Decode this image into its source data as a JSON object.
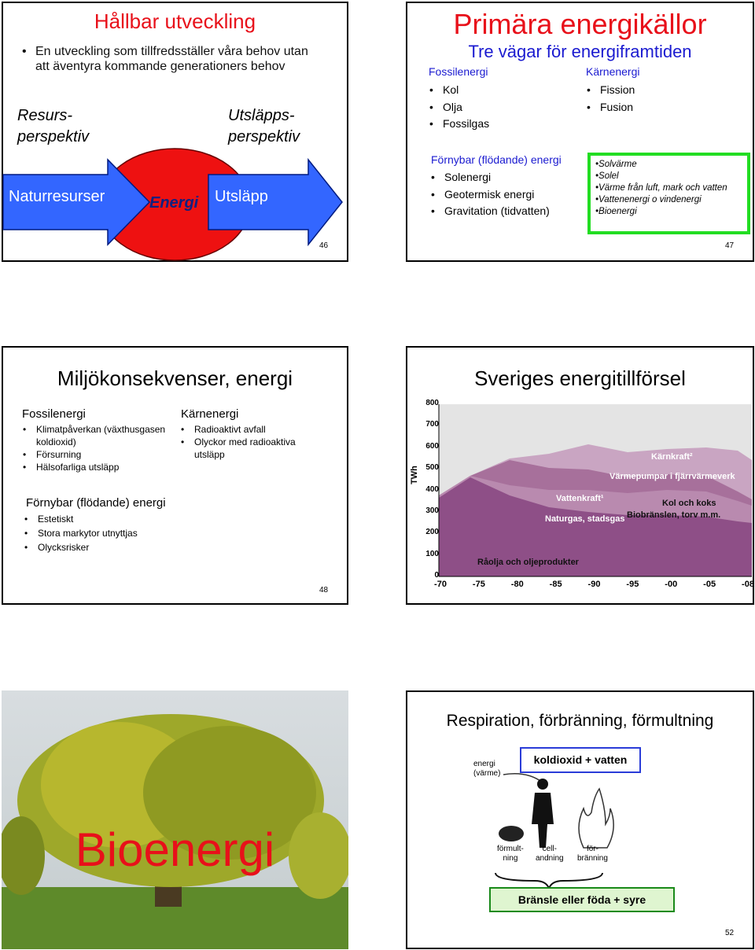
{
  "slides": [
    {
      "title": "Hållbar utveckling",
      "bullet": "En utveckling som tillfredsställer våra behov utan att äventyra kommande generationers behov",
      "left_label": [
        "Resurs-",
        "perspektiv"
      ],
      "right_label": [
        "Utsläpps-",
        "perspektiv"
      ],
      "flow": [
        "Naturresurser",
        "Energi",
        "Utsläpp"
      ],
      "page": 46
    },
    {
      "title": "Primära energikällor",
      "subtitle": "Tre vägar för energiframtiden",
      "fossil": {
        "heading": "Fossilenergi",
        "items": [
          "Kol",
          "Olja",
          "Fossilgas"
        ]
      },
      "nuclear": {
        "heading": "Kärnenergi",
        "items": [
          "Fission",
          "Fusion"
        ]
      },
      "renewable": {
        "heading": "Förnybar (flödande) energi",
        "items": [
          "Solenergi",
          "Geotermisk energi",
          "Gravitation (tidvatten)"
        ]
      },
      "box_items": [
        "Solvärme",
        "Solel",
        "Värme från luft, mark och vatten",
        "Vattenenergi o vindenergi",
        "Bioenergi"
      ],
      "page": 47
    },
    {
      "title": "Miljökonsekvenser, energi",
      "fossil": {
        "heading": "Fossilenergi",
        "items": [
          "Klimatpåverkan (växthusgasen koldioxid)",
          "Försurning",
          "Hälsofarliga utsläpp"
        ]
      },
      "nuclear": {
        "heading": "Kärnenergi",
        "items": [
          "Radioaktivt avfall",
          "Olyckor med radioaktiva utsläpp"
        ]
      },
      "renewable": {
        "heading": "Förnybar (flödande) energi",
        "items": [
          "Estetiskt",
          "Stora markytor utnyttjas",
          "Olycksrisker"
        ]
      },
      "page": 48
    },
    {
      "title": "Sveriges energitillförsel",
      "chart": {
        "y_label": "TWh",
        "y_ticks": [
          800,
          700,
          600,
          500,
          400,
          300,
          200,
          100,
          0
        ],
        "x_ticks": [
          "-70",
          "-75",
          "-80",
          "-85",
          "-90",
          "-95",
          "-00",
          "-05",
          "-08"
        ],
        "area_labels": [
          "Kärnkraft²",
          "Värmepumpar i fjärrvärmeverk",
          "Vattenkraft¹",
          "Kol och koks",
          "Naturgas, stadsgas",
          "Biobränslen, torv m.m.",
          "Råolja och oljeprodukter"
        ]
      }
    },
    {
      "overlay": "Bioenergi"
    },
    {
      "title": "Respiration, förbränning, förmultning",
      "top_box": "koldioxid + vatten",
      "energy_label": [
        "energi",
        "(värme)"
      ],
      "processes": [
        [
          "förmult-",
          "ning"
        ],
        [
          "cell-",
          "andning"
        ],
        [
          "för-",
          "bränning"
        ]
      ],
      "bottom_box": "Bränsle eller föda + syre",
      "page": 52
    }
  ]
}
